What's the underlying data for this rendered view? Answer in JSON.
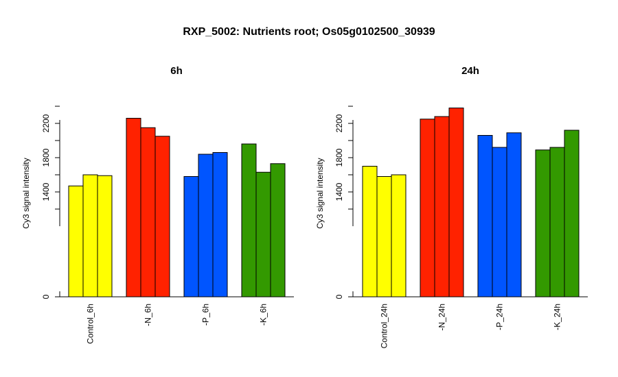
{
  "figure": {
    "title": "RXP_5002: Nutrients root; Os05g0102500_30939"
  },
  "chart_data": [
    {
      "type": "bar",
      "title": "6h",
      "ylabel": "Cy3 signal intensity",
      "xlabel": "",
      "categories": [
        "Control_6h",
        "-N_6h",
        "-P_6h",
        "-K_6h"
      ],
      "group_colors": [
        "#ffff00",
        "#ff2200",
        "#0055ff",
        "#339900"
      ],
      "values": [
        [
          1470,
          1600,
          1590
        ],
        [
          2260,
          2150,
          2050
        ],
        [
          1580,
          1840,
          1860
        ],
        [
          1960,
          1630,
          1730
        ]
      ],
      "y_ticks": [
        0,
        1400,
        1800,
        2200
      ],
      "ylim": [
        0,
        2400
      ],
      "y_axis_break": true,
      "grid": false
    },
    {
      "type": "bar",
      "title": "24h",
      "ylabel": "Cy3 signal intensity",
      "xlabel": "",
      "categories": [
        "Control_24h",
        "-N_24h",
        "-P_24h",
        "-K_24h"
      ],
      "group_colors": [
        "#ffff00",
        "#ff2200",
        "#0055ff",
        "#339900"
      ],
      "values": [
        [
          1700,
          1580,
          1600
        ],
        [
          2250,
          2280,
          2380
        ],
        [
          2060,
          1920,
          2090
        ],
        [
          1890,
          1920,
          2120
        ]
      ],
      "y_ticks": [
        0,
        1400,
        1800,
        2200
      ],
      "ylim": [
        0,
        2400
      ],
      "y_axis_break": true,
      "grid": false
    }
  ]
}
